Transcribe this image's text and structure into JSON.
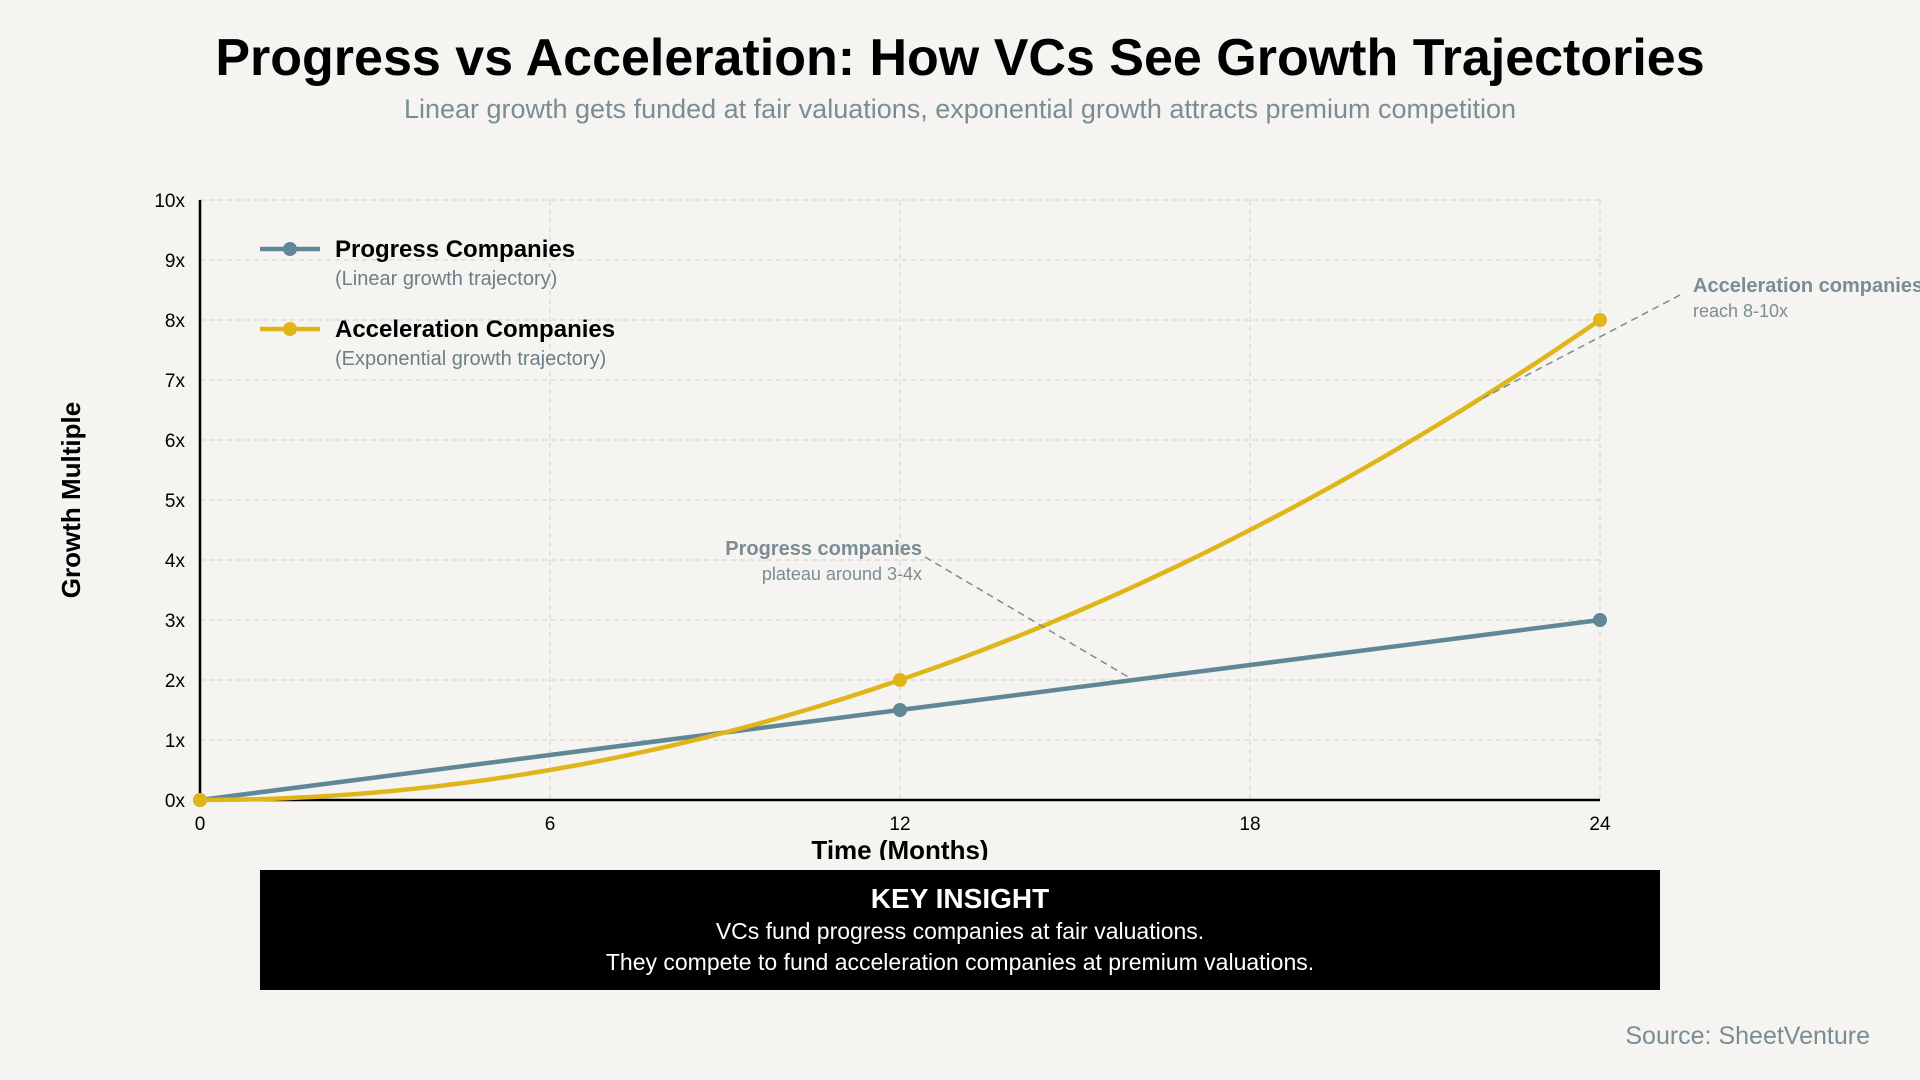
{
  "title": "Progress vs Acceleration: How VCs See Growth Trajectories",
  "subtitle": "Linear growth gets funded at fair valuations, exponential growth attracts premium competition",
  "chart_data": {
    "type": "line",
    "xlabel": "Time (Months)",
    "ylabel": "Growth Multiple",
    "xlim": [
      0,
      24
    ],
    "ylim": [
      0,
      10
    ],
    "x_ticks": [
      0,
      6,
      12,
      18,
      24
    ],
    "y_ticks": [
      0,
      1,
      2,
      3,
      4,
      5,
      6,
      7,
      8,
      9,
      10
    ],
    "y_tick_labels": [
      "0x",
      "1x",
      "2x",
      "3x",
      "4x",
      "5x",
      "6x",
      "7x",
      "8x",
      "9x",
      "10x"
    ],
    "grid": true,
    "legend_position": "top-left",
    "series": [
      {
        "name": "Progress Companies",
        "description": "(Linear growth trajectory)",
        "color": "#5f8796",
        "x": [
          0,
          12,
          24
        ],
        "values": [
          0,
          1.5,
          3
        ],
        "curve": "linear",
        "markers": [
          0,
          12,
          24
        ]
      },
      {
        "name": "Acceleration Companies",
        "description": "(Exponential growth trajectory)",
        "color": "#e0b51a",
        "x": [
          0,
          12,
          24
        ],
        "values": [
          0,
          2,
          8
        ],
        "curve": "quadratic",
        "markers": [
          0,
          12,
          24
        ]
      }
    ],
    "annotations": [
      {
        "title": "Progress companies",
        "text": "plateau around 3-4x",
        "target": [
          16,
          2
        ]
      },
      {
        "title": "Acceleration companies",
        "text": "reach 8-10x",
        "target": [
          22,
          6.7
        ]
      }
    ]
  },
  "insight": {
    "title": "KEY INSIGHT",
    "line1": "VCs fund progress companies at fair valuations.",
    "line2": "They compete to fund acceleration companies at premium valuations."
  },
  "source": "Source: SheetVenture"
}
